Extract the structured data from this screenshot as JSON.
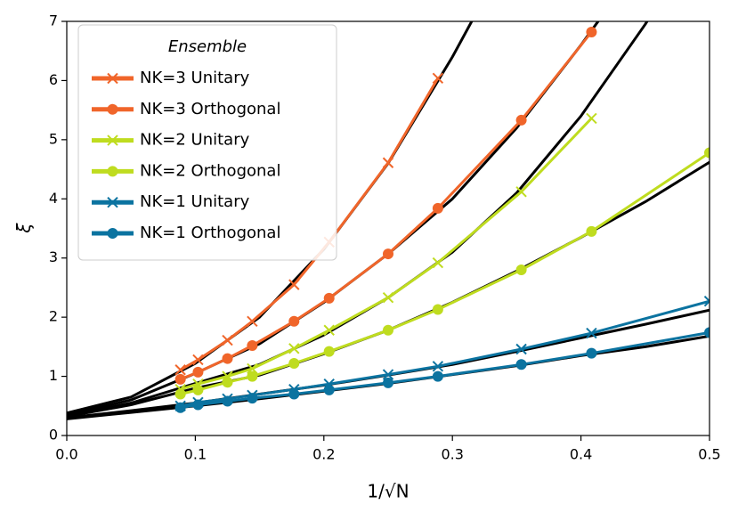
{
  "chart_data": {
    "type": "line",
    "xlabel": "1/√N",
    "ylabel": "ξ",
    "legend_title": "Ensemble",
    "legend": "upper left",
    "xlim": [
      0,
      0.5
    ],
    "ylim": [
      0,
      7
    ],
    "xticks": [
      {
        "value": 0,
        "label": "0.0"
      },
      0.1,
      0.2,
      0.3,
      0.4,
      0.5
    ],
    "yticks": [
      0,
      1,
      2,
      3,
      4,
      5,
      6,
      7
    ],
    "x": [
      0.0884,
      0.1021,
      0.125,
      0.1443,
      0.1768,
      0.2041,
      0.25,
      0.2887,
      0.3536,
      0.4082,
      0.5
    ],
    "series": [
      {
        "name": "NK=3 Unitary",
        "color": "#f0652a",
        "marker": "x",
        "values": [
          1.11,
          1.28,
          1.61,
          1.93,
          2.55,
          3.27,
          4.61,
          6.04,
          null,
          null,
          null
        ]
      },
      {
        "name": "NK=3 Orthogonal",
        "color": "#f0652a",
        "marker": "o",
        "values": [
          0.95,
          1.07,
          1.3,
          1.52,
          1.93,
          2.32,
          3.07,
          3.84,
          5.33,
          6.82,
          null
        ]
      },
      {
        "name": "NK=2 Unitary",
        "color": "#bfdc1f",
        "marker": "x",
        "values": [
          0.78,
          0.87,
          1.0,
          1.13,
          1.47,
          1.78,
          2.33,
          2.92,
          4.12,
          5.36,
          null
        ]
      },
      {
        "name": "NK=2 Orthogonal",
        "color": "#bfdc1f",
        "marker": "o",
        "values": [
          0.7,
          0.77,
          0.9,
          1.0,
          1.22,
          1.42,
          1.78,
          2.13,
          2.8,
          3.45,
          4.78
        ]
      },
      {
        "name": "NK=1 Unitary",
        "color": "#0b73a0",
        "marker": "x",
        "values": [
          0.5,
          0.56,
          0.62,
          0.68,
          0.78,
          0.87,
          1.03,
          1.17,
          1.46,
          1.73,
          2.27
        ]
      },
      {
        "name": "NK=1 Orthogonal",
        "color": "#0b73a0",
        "marker": "o",
        "values": [
          0.47,
          0.52,
          0.58,
          0.63,
          0.7,
          0.77,
          0.89,
          1.0,
          1.2,
          1.39,
          1.74
        ]
      }
    ],
    "fits": [
      {
        "color": "#000000",
        "x": [
          0,
          0.05,
          0.1,
          0.15,
          0.2,
          0.25,
          0.3,
          0.32
        ],
        "values": [
          0.38,
          0.65,
          1.22,
          2.0,
          3.15,
          4.6,
          6.4,
          7.2
        ]
      },
      {
        "color": "#000000",
        "x": [
          0,
          0.05,
          0.1,
          0.15,
          0.2,
          0.25,
          0.3,
          0.35,
          0.4,
          0.42
        ],
        "values": [
          0.35,
          0.6,
          1.05,
          1.55,
          2.25,
          3.07,
          4.0,
          5.2,
          6.6,
          7.2
        ]
      },
      {
        "color": "#000000",
        "x": [
          0,
          0.05,
          0.1,
          0.15,
          0.2,
          0.25,
          0.3,
          0.35,
          0.4,
          0.45,
          0.46
        ],
        "values": [
          0.33,
          0.55,
          0.88,
          1.2,
          1.7,
          2.33,
          3.1,
          4.1,
          5.4,
          6.95,
          7.3
        ]
      },
      {
        "color": "#000000",
        "x": [
          0,
          0.05,
          0.1,
          0.15,
          0.2,
          0.25,
          0.3,
          0.35,
          0.4,
          0.45,
          0.5
        ],
        "values": [
          0.32,
          0.52,
          0.8,
          1.02,
          1.38,
          1.78,
          2.25,
          2.78,
          3.35,
          3.95,
          4.62
        ]
      },
      {
        "color": "#000000",
        "x": [
          0,
          0.05,
          0.1,
          0.15,
          0.2,
          0.25,
          0.3,
          0.35,
          0.4,
          0.45,
          0.5
        ],
        "values": [
          0.3,
          0.42,
          0.55,
          0.7,
          0.85,
          1.02,
          1.2,
          1.42,
          1.65,
          1.88,
          2.12
        ]
      },
      {
        "color": "#000000",
        "x": [
          0,
          0.05,
          0.1,
          0.15,
          0.2,
          0.25,
          0.3,
          0.35,
          0.4,
          0.45,
          0.5
        ],
        "values": [
          0.28,
          0.39,
          0.5,
          0.62,
          0.75,
          0.88,
          1.03,
          1.18,
          1.35,
          1.5,
          1.68
        ]
      }
    ]
  }
}
